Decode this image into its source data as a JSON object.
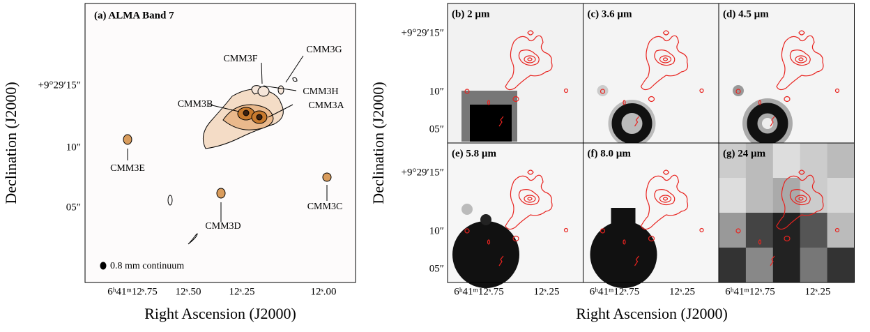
{
  "figure": {
    "left_panel": {
      "title": "(a) ALMA Band 7",
      "y_axis_label": "Declination (J2000)",
      "x_axis_label": "Right Ascension (J2000)",
      "yticks": [
        "+9°29′15″",
        "10″",
        "05″"
      ],
      "xticks": [
        "6ʰ41ᵐ12ˢ.75",
        "12ˢ.50",
        "12ˢ.25",
        "12ˢ.00"
      ],
      "sources": [
        "CMM3F",
        "CMM3G",
        "CMM3B",
        "CMM3H",
        "CMM3A",
        "CMM3E",
        "CMM3D",
        "CMM3C"
      ],
      "beam_label": "0.8 mm continuum"
    },
    "right_panels": {
      "y_axis_label": "Declination (J2000)",
      "x_axis_label": "Right Ascension (J2000)",
      "titles": [
        "(b) 2 µm",
        "(c) 3.6 µm",
        "(d) 4.5 µm",
        "(e) 5.8 µm",
        "(f) 8.0 µm",
        "(g) 24 µm"
      ],
      "yticks": [
        "+9°29′15″",
        "10″",
        "05″"
      ],
      "xticks": [
        "6ʰ41ᵐ12ˢ.75",
        "12ˢ.25"
      ]
    }
  }
}
